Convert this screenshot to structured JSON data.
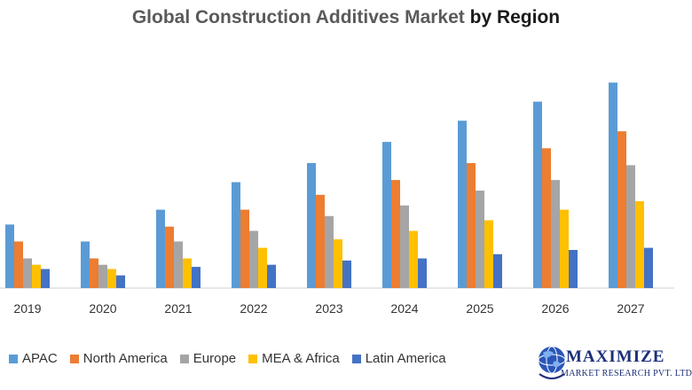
{
  "header": {
    "title_main": "Global Construction Additives Market",
    "title_accent": "by Region"
  },
  "logo": {
    "main": "MAXIMIZE",
    "sub": "MARKET RESEARCH PVT. LTD."
  },
  "colors": {
    "apac": "#5b9bd5",
    "north_america": "#ed7d31",
    "europe": "#a5a5a5",
    "mea_africa": "#ffc000",
    "latin_america": "#4472c4",
    "logo": "#1c2f7a"
  },
  "chart_data": {
    "type": "bar",
    "title": "Global Construction Additives Market by Region",
    "xlabel": "",
    "ylabel": "",
    "ylim": [
      0,
      100
    ],
    "grid": false,
    "legend_position": "bottom",
    "categories": [
      "2019",
      "2020",
      "2021",
      "2022",
      "2023",
      "2024",
      "2025",
      "2026",
      "2027"
    ],
    "series": [
      {
        "name": "APAC",
        "color": "#5b9bd5",
        "values": [
          30,
          22,
          37,
          50,
          59,
          69,
          79,
          88,
          97
        ]
      },
      {
        "name": "North America",
        "color": "#ed7d31",
        "values": [
          22,
          14,
          29,
          37,
          44,
          51,
          59,
          66,
          74
        ]
      },
      {
        "name": "Europe",
        "color": "#a5a5a5",
        "values": [
          14,
          11,
          22,
          27,
          34,
          39,
          46,
          51,
          58
        ]
      },
      {
        "name": "MEA & Africa",
        "color": "#ffc000",
        "values": [
          11,
          9,
          14,
          19,
          23,
          27,
          32,
          37,
          41
        ]
      },
      {
        "name": "Latin America",
        "color": "#4472c4",
        "values": [
          9,
          6,
          10,
          11,
          13,
          14,
          16,
          18,
          19
        ]
      }
    ]
  }
}
